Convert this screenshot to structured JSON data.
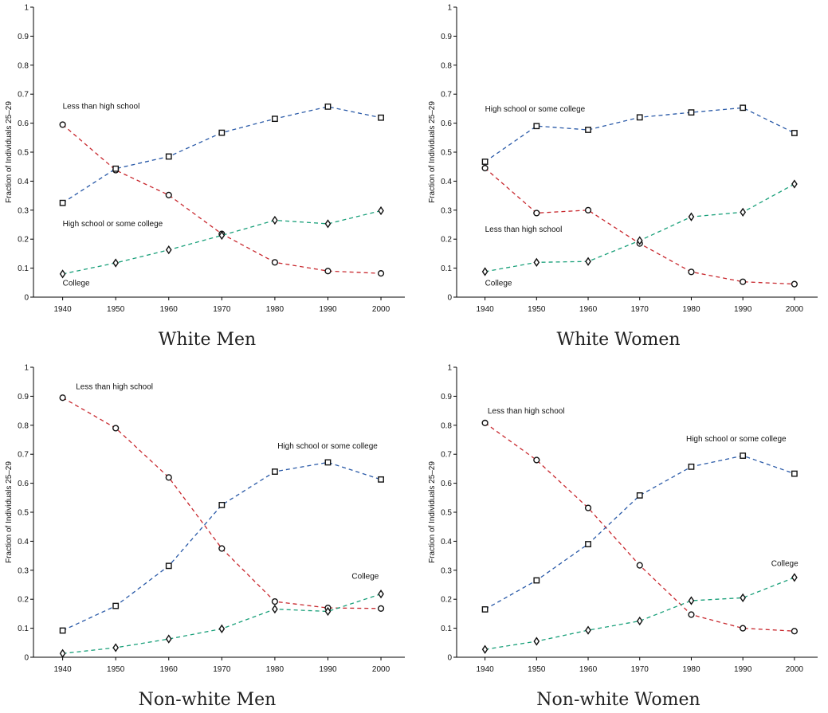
{
  "colors": {
    "less_than_high_school": "#c8282e",
    "high_school_or_some_college": "#2a5aa8",
    "college": "#1aa07a",
    "axis": "#000000"
  },
  "chart_data": [
    {
      "type": "line",
      "title": "White Men",
      "ylabel": "Fraction of Individuals 25–29",
      "xlabel": "",
      "x": [
        1940,
        1950,
        1960,
        1970,
        1980,
        1990,
        2000
      ],
      "xticks": [
        "1940",
        "1950",
        "1960",
        "1970",
        "1980",
        "1990",
        "2000"
      ],
      "yticks": [
        "0",
        "0.1",
        "0.2",
        "0.3",
        "0.4",
        "0.5",
        "0.6",
        "0.7",
        "0.8",
        "0.9",
        "1"
      ],
      "ylim": [
        0,
        1
      ],
      "grid": false,
      "series": [
        {
          "name": "Less than high school",
          "marker": "circle",
          "color": "#c8282e",
          "values": [
            0.595,
            0.438,
            0.352,
            0.218,
            0.12,
            0.09,
            0.082
          ]
        },
        {
          "name": "High school or some college",
          "marker": "square",
          "color": "#2a5aa8",
          "values": [
            0.325,
            0.443,
            0.485,
            0.567,
            0.615,
            0.657,
            0.619
          ]
        },
        {
          "name": "College",
          "marker": "diamond",
          "color": "#1aa07a",
          "values": [
            0.08,
            0.118,
            0.163,
            0.213,
            0.265,
            0.253,
            0.298
          ]
        }
      ],
      "annotations": [
        {
          "text": "Less than high school",
          "x": 1940,
          "y": 0.65
        },
        {
          "text": "High school or some college",
          "x": 1940,
          "y": 0.245
        },
        {
          "text": "College",
          "x": 1940,
          "y": 0.04
        }
      ]
    },
    {
      "type": "line",
      "title": "White Women",
      "ylabel": "Fraction of Individuals 25–29",
      "xlabel": "",
      "x": [
        1940,
        1950,
        1960,
        1970,
        1980,
        1990,
        2000
      ],
      "xticks": [
        "1940",
        "1950",
        "1960",
        "1970",
        "1980",
        "1990",
        "2000"
      ],
      "yticks": [
        "0",
        "0.1",
        "0.2",
        "0.3",
        "0.4",
        "0.5",
        "0.6",
        "0.7",
        "0.8",
        "0.9",
        "1"
      ],
      "ylim": [
        0,
        1
      ],
      "grid": false,
      "series": [
        {
          "name": "Less than high school",
          "marker": "circle",
          "color": "#c8282e",
          "values": [
            0.445,
            0.29,
            0.3,
            0.185,
            0.087,
            0.053,
            0.045
          ]
        },
        {
          "name": "High school or some college",
          "marker": "square",
          "color": "#2a5aa8",
          "values": [
            0.467,
            0.59,
            0.577,
            0.62,
            0.637,
            0.653,
            0.566
          ]
        },
        {
          "name": "College",
          "marker": "diamond",
          "color": "#1aa07a",
          "values": [
            0.088,
            0.12,
            0.123,
            0.195,
            0.277,
            0.293,
            0.39
          ]
        }
      ],
      "annotations": [
        {
          "text": "High school or some college",
          "x": 1940,
          "y": 0.64
        },
        {
          "text": "Less than high school",
          "x": 1940,
          "y": 0.225
        },
        {
          "text": "College",
          "x": 1940,
          "y": 0.04
        }
      ]
    },
    {
      "type": "line",
      "title": "Non-white Men",
      "ylabel": "Fraction of Individuals 25–29",
      "xlabel": "",
      "x": [
        1940,
        1950,
        1960,
        1970,
        1980,
        1990,
        2000
      ],
      "xticks": [
        "1940",
        "1950",
        "1960",
        "1970",
        "1980",
        "1990",
        "2000"
      ],
      "yticks": [
        "0",
        "0.1",
        "0.2",
        "0.3",
        "0.4",
        "0.5",
        "0.6",
        "0.7",
        "0.8",
        "0.9",
        "1"
      ],
      "ylim": [
        0,
        1
      ],
      "grid": false,
      "series": [
        {
          "name": "Less than high school",
          "marker": "circle",
          "color": "#c8282e",
          "values": [
            0.895,
            0.79,
            0.62,
            0.375,
            0.192,
            0.17,
            0.168
          ]
        },
        {
          "name": "High school or some college",
          "marker": "square",
          "color": "#2a5aa8",
          "values": [
            0.092,
            0.177,
            0.315,
            0.525,
            0.64,
            0.672,
            0.613
          ]
        },
        {
          "name": "College",
          "marker": "diamond",
          "color": "#1aa07a",
          "values": [
            0.013,
            0.033,
            0.063,
            0.098,
            0.166,
            0.158,
            0.218
          ]
        }
      ],
      "annotations": [
        {
          "text": "Less than high school",
          "x": 1942.5,
          "y": 0.925
        },
        {
          "text": "High school or some college",
          "x": 1980.5,
          "y": 0.72
        },
        {
          "text": "College",
          "x": 1994.5,
          "y": 0.27
        }
      ]
    },
    {
      "type": "line",
      "title": "Non-white Women",
      "ylabel": "Fraction of Individuals 25–29",
      "xlabel": "",
      "x": [
        1940,
        1950,
        1960,
        1970,
        1980,
        1990,
        2000
      ],
      "xticks": [
        "1940",
        "1950",
        "1960",
        "1970",
        "1980",
        "1990",
        "2000"
      ],
      "yticks": [
        "0",
        "0.1",
        "0.2",
        "0.3",
        "0.4",
        "0.5",
        "0.6",
        "0.7",
        "0.8",
        "0.9",
        "1"
      ],
      "ylim": [
        0,
        1
      ],
      "grid": false,
      "series": [
        {
          "name": "Less than high school",
          "marker": "circle",
          "color": "#c8282e",
          "values": [
            0.808,
            0.68,
            0.515,
            0.317,
            0.147,
            0.1,
            0.09
          ]
        },
        {
          "name": "High school or some college",
          "marker": "square",
          "color": "#2a5aa8",
          "values": [
            0.165,
            0.265,
            0.39,
            0.558,
            0.657,
            0.695,
            0.633
          ]
        },
        {
          "name": "College",
          "marker": "diamond",
          "color": "#1aa07a",
          "values": [
            0.027,
            0.055,
            0.093,
            0.125,
            0.195,
            0.205,
            0.275
          ]
        }
      ],
      "annotations": [
        {
          "text": "Less than high school",
          "x": 1940.5,
          "y": 0.84
        },
        {
          "text": "High school or some college",
          "x": 1979,
          "y": 0.745
        },
        {
          "text": "College",
          "x": 1995.5,
          "y": 0.315
        }
      ]
    }
  ]
}
